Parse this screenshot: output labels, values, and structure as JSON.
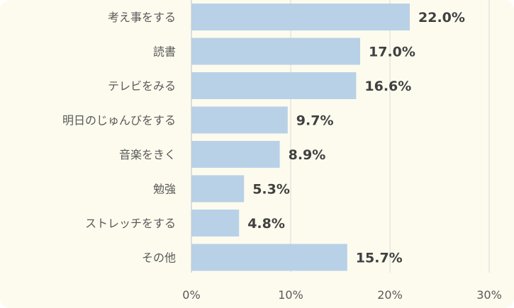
{
  "chart_data": {
    "type": "bar",
    "orientation": "horizontal",
    "categories": [
      "考え事をする",
      "読書",
      "テレビをみる",
      "明日のじゅんびをする",
      "音楽をきく",
      "勉強",
      "ストレッチをする",
      "その他"
    ],
    "values": [
      22.0,
      17.0,
      16.6,
      9.7,
      8.9,
      5.3,
      4.8,
      15.7
    ],
    "data_labels": [
      "22.0%",
      "17.0%",
      "16.6%",
      "9.7%",
      "8.9%",
      "5.3%",
      "4.8%",
      "15.7%"
    ],
    "x_ticks": [
      0,
      10,
      20,
      30
    ],
    "x_tick_labels": [
      "0%",
      "10%",
      "20%",
      "30%"
    ],
    "xlim": [
      0,
      30
    ],
    "grid": "vertical",
    "legend": "none",
    "colors": {
      "bar": "#b8d1e7",
      "grid": "#d9d9d9",
      "background": "#fdfbee"
    }
  }
}
